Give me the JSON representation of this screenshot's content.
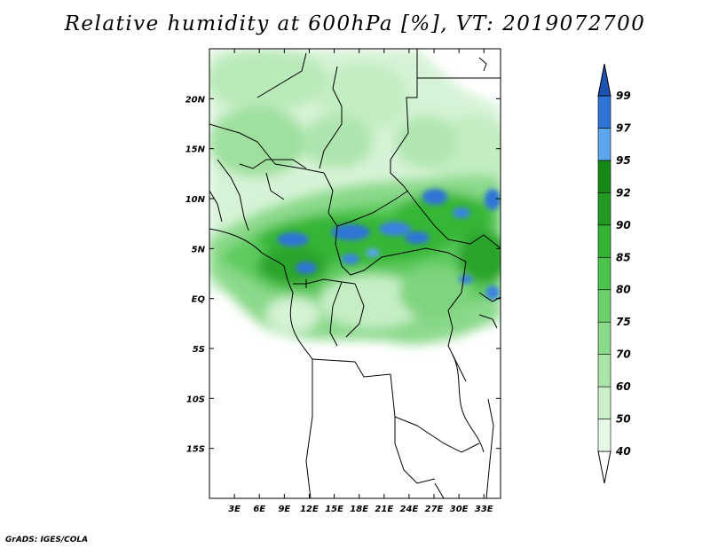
{
  "title": "Relative humidity at 600hPa [%], VT: 2019072700",
  "credit": "GrADS: IGES/COLA",
  "map": {
    "lon_range": [
      0,
      35
    ],
    "lat_range": [
      -20,
      25
    ],
    "lon_ticks": [
      "3E",
      "6E",
      "9E",
      "12E",
      "15E",
      "18E",
      "21E",
      "24E",
      "27E",
      "30E",
      "33E"
    ],
    "lat_ticks": [
      "20N",
      "15N",
      "10N",
      "5N",
      "EQ",
      "5S",
      "10S",
      "15S"
    ]
  },
  "colorbar": {
    "levels": [
      "40",
      "50",
      "60",
      "70",
      "75",
      "80",
      "85",
      "90",
      "92",
      "95",
      "97",
      "99"
    ],
    "colors": [
      "#ffffff",
      "#e6f8e6",
      "#c9f0c9",
      "#a9e4a9",
      "#8bd98b",
      "#6ccf6c",
      "#4cc34c",
      "#34b234",
      "#229a22",
      "#158915",
      "#5ba6ee",
      "#2d74d6",
      "#1b52b4"
    ]
  }
}
